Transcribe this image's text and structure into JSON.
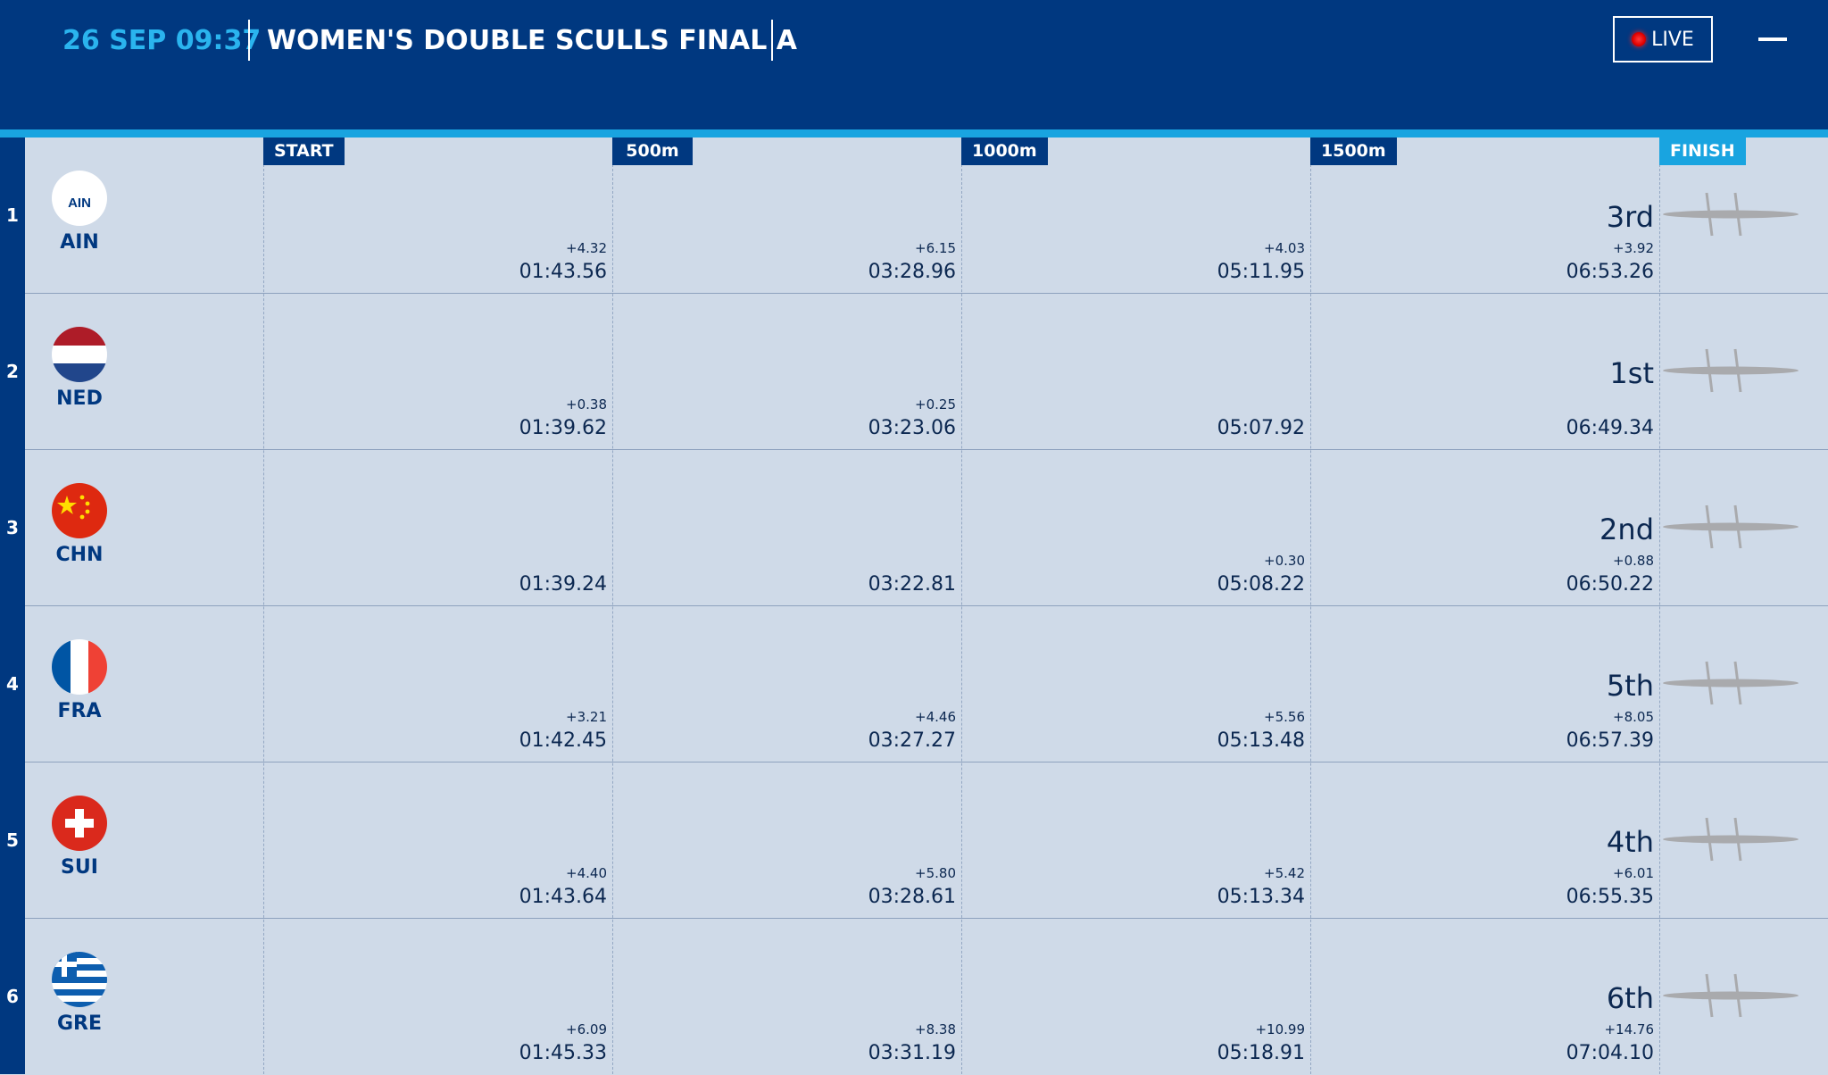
{
  "header": {
    "datetime": "26 SEP 09:37",
    "title": "WOMEN'S DOUBLE SCULLS FINAL A",
    "live_label": "LIVE"
  },
  "markers": [
    "START",
    "500m",
    "1000m",
    "1500m",
    "FINISH"
  ],
  "lanes": [
    {
      "lane": "1",
      "country": "AIN",
      "flag_text": "AIN",
      "flag": "ain-flag",
      "splits": [
        {
          "time": "01:43.56",
          "delta": "+4.32"
        },
        {
          "time": "03:28.96",
          "delta": "+6.15"
        },
        {
          "time": "05:11.95",
          "delta": "+4.03"
        }
      ],
      "finish": {
        "place": "3rd",
        "time": "06:53.26",
        "delta": "+3.92"
      }
    },
    {
      "lane": "2",
      "country": "NED",
      "flag": "netherlands-flag",
      "splits": [
        {
          "time": "01:39.62",
          "delta": "+0.38"
        },
        {
          "time": "03:23.06",
          "delta": "+0.25"
        },
        {
          "time": "05:07.92",
          "delta": ""
        }
      ],
      "finish": {
        "place": "1st",
        "time": "06:49.34",
        "delta": ""
      }
    },
    {
      "lane": "3",
      "country": "CHN",
      "flag": "china-flag",
      "splits": [
        {
          "time": "01:39.24",
          "delta": ""
        },
        {
          "time": "03:22.81",
          "delta": ""
        },
        {
          "time": "05:08.22",
          "delta": "+0.30"
        }
      ],
      "finish": {
        "place": "2nd",
        "time": "06:50.22",
        "delta": "+0.88"
      }
    },
    {
      "lane": "4",
      "country": "FRA",
      "flag": "france-flag",
      "splits": [
        {
          "time": "01:42.45",
          "delta": "+3.21"
        },
        {
          "time": "03:27.27",
          "delta": "+4.46"
        },
        {
          "time": "05:13.48",
          "delta": "+5.56"
        }
      ],
      "finish": {
        "place": "5th",
        "time": "06:57.39",
        "delta": "+8.05"
      }
    },
    {
      "lane": "5",
      "country": "SUI",
      "flag": "switzerland-flag",
      "splits": [
        {
          "time": "01:43.64",
          "delta": "+4.40"
        },
        {
          "time": "03:28.61",
          "delta": "+5.80"
        },
        {
          "time": "05:13.34",
          "delta": "+5.42"
        }
      ],
      "finish": {
        "place": "4th",
        "time": "06:55.35",
        "delta": "+6.01"
      }
    },
    {
      "lane": "6",
      "country": "GRE",
      "flag": "greece-flag",
      "splits": [
        {
          "time": "01:45.33",
          "delta": "+6.09"
        },
        {
          "time": "03:31.19",
          "delta": "+8.38"
        },
        {
          "time": "05:18.91",
          "delta": "+10.99"
        }
      ],
      "finish": {
        "place": "6th",
        "time": "07:04.10",
        "delta": "+14.76"
      }
    }
  ],
  "colors": {
    "header_bg": "#003880",
    "accent": "#19a4e0",
    "board_bg": "#cfdae8",
    "text_dark": "#0b2750",
    "live_dot": "#e00000"
  }
}
